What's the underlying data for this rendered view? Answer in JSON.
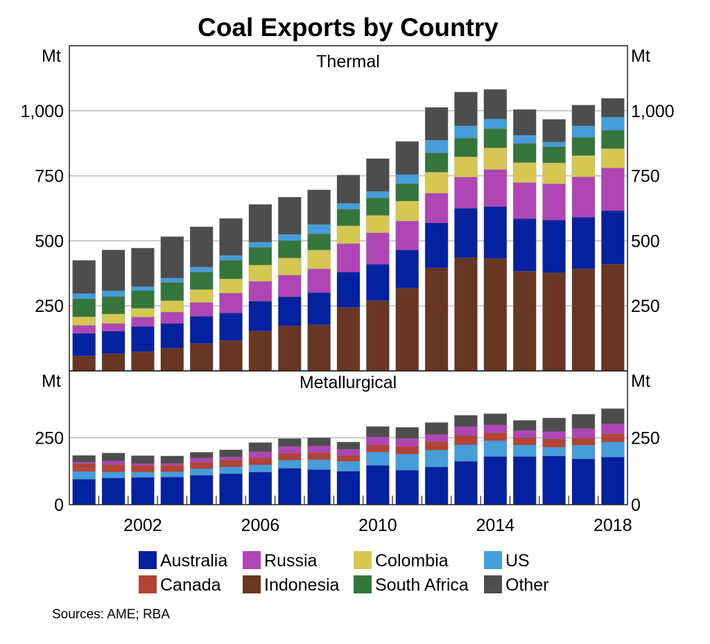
{
  "chart_data": {
    "type": "bar",
    "stacked": true,
    "title": "Coal Exports by Country",
    "source": "Sources: AME; RBA",
    "unit": "Mt",
    "x": [
      2000,
      2001,
      2002,
      2003,
      2004,
      2005,
      2006,
      2007,
      2008,
      2009,
      2010,
      2011,
      2012,
      2013,
      2014,
      2015,
      2016,
      2017,
      2018
    ],
    "x_tick_labels": [
      "2002",
      "2006",
      "2010",
      "2014",
      "2018"
    ],
    "x_tick_values": [
      2002,
      2006,
      2010,
      2014,
      2018
    ],
    "colors": {
      "Australia": "#0421a0",
      "Russia": "#b045b5",
      "Colombia": "#d6c752",
      "US": "#459ddb",
      "Canada": "#b14337",
      "Indonesia": "#683622",
      "South Africa": "#34763c",
      "Other": "#4d4d4d"
    },
    "legend": [
      "Australia",
      "Russia",
      "Colombia",
      "US",
      "Canada",
      "Indonesia",
      "South Africa",
      "Other"
    ],
    "legend_placement": "bottom",
    "panels": [
      {
        "title": "Thermal",
        "ylabel": "Mt",
        "ylim": [
          0,
          1250
        ],
        "y_ticks": [
          250,
          500,
          750,
          1000
        ],
        "y_tick_labels": [
          "250",
          "500",
          "750",
          "1,000"
        ],
        "grid": true,
        "series": [
          {
            "name": "Indonesia",
            "values": [
              58,
              66,
              74,
              87,
              105,
              116,
              153,
              173,
              177,
              244,
              270,
              318,
              396,
              435,
              432,
              383,
              377,
              392,
              410
            ]
          },
          {
            "name": "Australia",
            "values": [
              86,
              87,
              97,
              96,
              105,
              107,
              115,
              112,
              124,
              136,
              140,
              147,
              173,
              190,
              200,
              202,
              203,
              199,
              206
            ]
          },
          {
            "name": "Russia",
            "values": [
              31,
              29,
              36,
              43,
              53,
              76,
              76,
              83,
              91,
              109,
              121,
              111,
              114,
              120,
              142,
              139,
              139,
              155,
              164
            ]
          },
          {
            "name": "Colombia",
            "values": [
              33,
              37,
              34,
              44,
              50,
              55,
              63,
              66,
              73,
              69,
              67,
              77,
              81,
              78,
              84,
              77,
              81,
              82,
              75
            ]
          },
          {
            "name": "South Africa",
            "values": [
              69,
              67,
              68,
              70,
              67,
              71,
              68,
              67,
              62,
              64,
              67,
              67,
              74,
              72,
              73,
              74,
              62,
              70,
              70
            ]
          },
          {
            "name": "US",
            "values": [
              20,
              22,
              15,
              17,
              19,
              19,
              20,
              24,
              36,
              22,
              25,
              35,
              49,
              47,
              37,
              31,
              18,
              44,
              51
            ]
          },
          {
            "name": "Other",
            "values": [
              128,
              157,
              148,
              159,
              155,
              142,
              145,
              143,
              133,
              109,
              126,
              127,
              126,
              130,
              114,
              99,
              87,
              80,
              72
            ]
          }
        ]
      },
      {
        "title": "Metallurgical",
        "ylabel": "Mt",
        "ylim": [
          0,
          500
        ],
        "y_ticks": [
          0,
          250
        ],
        "y_tick_labels": [
          "0",
          "250"
        ],
        "grid": true,
        "series": [
          {
            "name": "Australia",
            "values": [
              95,
              100,
              102,
              103,
              110,
              116,
              122,
              136,
              131,
              125,
              147,
              129,
              141,
              162,
              180,
              180,
              182,
              171,
              178
            ]
          },
          {
            "name": "US",
            "values": [
              29,
              22,
              20,
              20,
              24,
              25,
              27,
              30,
              37,
              37,
              50,
              60,
              63,
              62,
              59,
              43,
              33,
              51,
              56
            ]
          },
          {
            "name": "Canada",
            "values": [
              29,
              28,
              25,
              24,
              24,
              26,
              26,
              26,
              26,
              22,
              26,
              29,
              32,
              35,
              30,
              29,
              31,
              27,
              31
            ]
          },
          {
            "name": "Russia",
            "values": [
              6,
              13,
              7,
              7,
              16,
              11,
              23,
              25,
              25,
              23,
              30,
              29,
              26,
              32,
              29,
              25,
              27,
              35,
              37
            ]
          },
          {
            "name": "Other",
            "values": [
              25,
              30,
              29,
              28,
              22,
              27,
              34,
              30,
              31,
              27,
              39,
              42,
              45,
              43,
              42,
              38,
              51,
              54,
              57
            ]
          }
        ]
      }
    ]
  }
}
